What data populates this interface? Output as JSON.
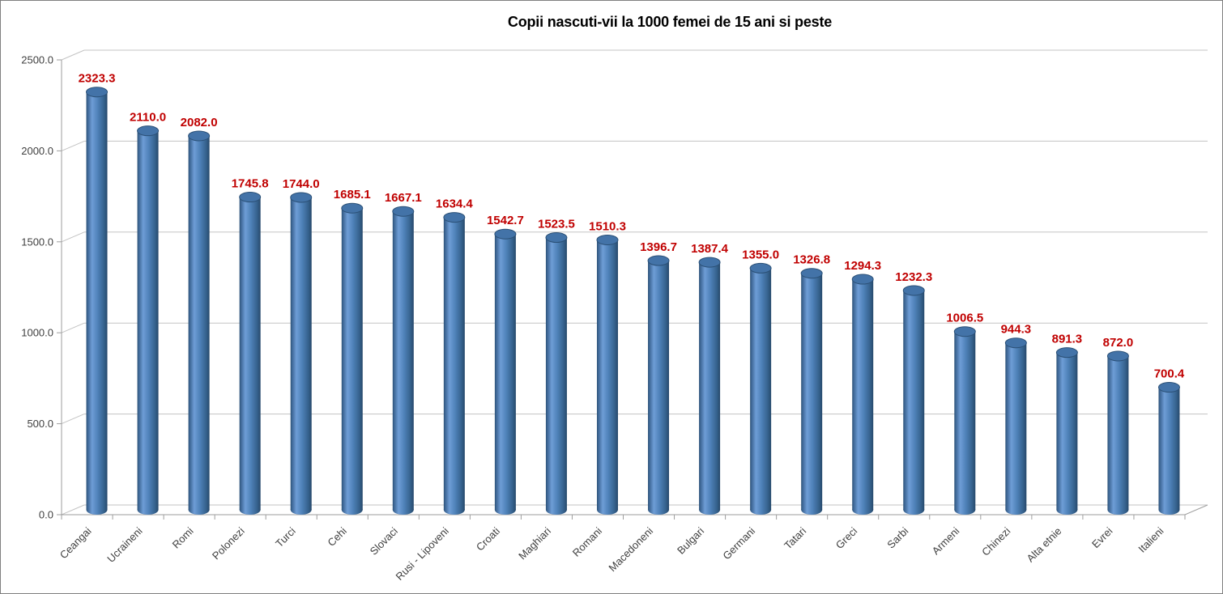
{
  "chart_data": {
    "type": "bar",
    "style": "3d-cylinder",
    "title": "Copii nascuti-vii la 1000 femei de 15 ani si peste",
    "categories": [
      "Ceangai",
      "Ucraineni",
      "Romi",
      "Polonezi",
      "Turci",
      "Cehi",
      "Slovaci",
      "Rusi - Lipoveni",
      "Croati",
      "Maghiari",
      "Romani",
      "Macedoneni",
      "Bulgari",
      "Germani",
      "Tatari",
      "Greci",
      "Sarbi",
      "Armeni",
      "Chinezi",
      "Alta etnie",
      "Evrei",
      "Italieni"
    ],
    "values": [
      2323.3,
      2110.0,
      2082.0,
      1745.8,
      1744.0,
      1685.1,
      1667.1,
      1634.4,
      1542.7,
      1523.5,
      1510.3,
      1396.7,
      1387.4,
      1355.0,
      1326.8,
      1294.3,
      1232.3,
      1006.5,
      944.3,
      891.3,
      872.0,
      700.4
    ],
    "value_labels": [
      "2323.3",
      "2110.0",
      "2082.0",
      "1745.8",
      "1744.0",
      "1685.1",
      "1667.1",
      "1634.4",
      "1542.7",
      "1523.5",
      "1510.3",
      "1396.7",
      "1387.4",
      "1355.0",
      "1326.8",
      "1294.3",
      "1232.3",
      "1006.5",
      "944.3",
      "891.3",
      "872.0",
      "700.4"
    ],
    "xlabel": "",
    "ylabel": "",
    "ylim": [
      0,
      2500
    ],
    "ytick_step": 500,
    "ytick_labels": [
      "0.0",
      "500.0",
      "1000.0",
      "1500.0",
      "2000.0",
      "2500.0"
    ],
    "grid": true,
    "legend": "none",
    "colors": {
      "background": "#FFFFFF",
      "canvas_border": "#7F7F7F",
      "title_text": "#000000",
      "value_label": "#C00000",
      "tick_text": "#404040",
      "gridline": "#C3C3C3",
      "axis": "#9E9E9E",
      "bar_edge_left": "#2E5377",
      "bar_highlight": "#6E9DD6",
      "bar_mid": "#4E81B8",
      "bar_edge_right": "#27496B",
      "bar_top_fill": "#4373A8",
      "bar_top_rim": "#2B5076"
    }
  }
}
